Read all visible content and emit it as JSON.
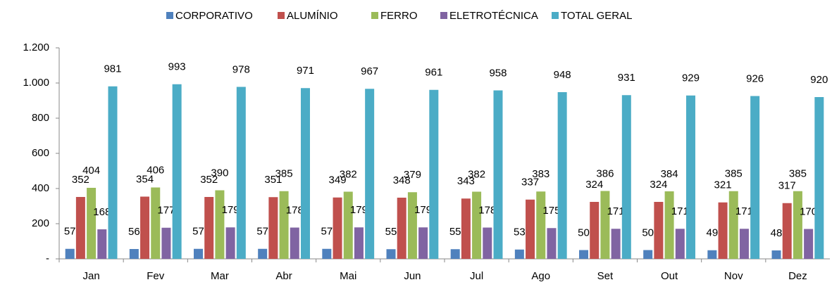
{
  "chart_data": {
    "type": "bar",
    "categories": [
      "Jan",
      "Fev",
      "Mar",
      "Abr",
      "Mai",
      "Jun",
      "Jul",
      "Ago",
      "Set",
      "Out",
      "Nov",
      "Dez"
    ],
    "series": [
      {
        "name": "CORPORATIVO",
        "color": "#4f81bd",
        "values": [
          57,
          56,
          57,
          57,
          57,
          55,
          55,
          53,
          50,
          50,
          49,
          48
        ]
      },
      {
        "name": "ALUMÍNIO",
        "color": "#c0504d",
        "values": [
          352,
          354,
          352,
          351,
          349,
          348,
          343,
          337,
          324,
          324,
          321,
          317
        ]
      },
      {
        "name": "FERRO",
        "color": "#9bbb59",
        "values": [
          404,
          406,
          390,
          385,
          382,
          379,
          382,
          383,
          386,
          384,
          385,
          385
        ]
      },
      {
        "name": "ELETROTÉCNICA",
        "color": "#8064a2",
        "values": [
          168,
          177,
          179,
          178,
          179,
          179,
          178,
          175,
          171,
          171,
          171,
          170
        ]
      },
      {
        "name": "TOTAL GERAL",
        "color": "#4bacc6",
        "values": [
          981,
          993,
          978,
          971,
          967,
          961,
          958,
          948,
          931,
          929,
          926,
          920
        ]
      }
    ],
    "ylim": [
      0,
      1200
    ],
    "yticks": [
      {
        "value": 0,
        "label": "-"
      },
      200,
      400,
      600,
      800,
      {
        "value": 1000,
        "label": "1.000"
      },
      {
        "value": 1200,
        "label": "1.200"
      }
    ],
    "grid": false,
    "legend": "top"
  }
}
